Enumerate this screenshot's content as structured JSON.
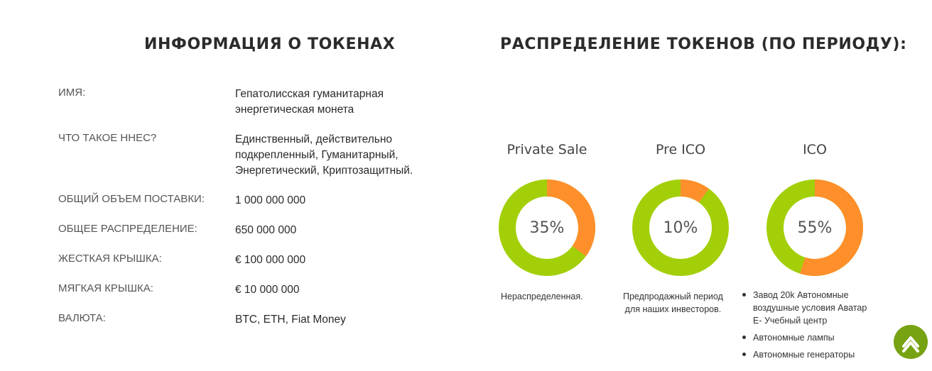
{
  "left": {
    "title": "ИНФОРМАЦИЯ О ТОКЕНАХ",
    "rows": [
      {
        "label": "ИМЯ:",
        "value": "Гепатолисская гуманитарная энергетическая монета"
      },
      {
        "label": "ЧТО ТАКОЕ ННЕС?",
        "value": "Единственный, действительно подкрепленный, Гуманитарный, Энергетический, Криптозащитный."
      },
      {
        "label": "ОБЩИЙ ОБЪЕМ ПОСТАВКИ:",
        "value": "1 000 000 000"
      },
      {
        "label": "ОБЩЕЕ РАСПРЕДЕЛЕНИЕ:",
        "value": "650 000 000"
      },
      {
        "label": "ЖЕСТКАЯ КРЫШКА:",
        "value": "€ 100 000 000"
      },
      {
        "label": "МЯГКАЯ КРЫШКА:",
        "value": "€ 10 000 000"
      },
      {
        "label": "ВАЛЮТА:",
        "value": "BTC, ETH, Fiat Money"
      }
    ]
  },
  "right": {
    "title": "РАСПРЕДЕЛЕНИЕ ТОКЕНОВ (ПО ПЕРИОДУ):",
    "charts": [
      {
        "name": "Private Sale",
        "percent": 35,
        "label": "35%",
        "note_lines": [
          "Нераспределенная."
        ]
      },
      {
        "name": "Pre ICO",
        "percent": 10,
        "label": "10%",
        "note_lines": [
          "Предпродажный период",
          "для наших инвесторов."
        ]
      },
      {
        "name": "ICO",
        "percent": 55,
        "label": "55%",
        "list": [
          "Завод 20k Автономные воздушные условия Аватар E- Учебный центр",
          "Автономные лампы",
          "Автономные генераторы"
        ]
      }
    ]
  },
  "colors": {
    "base": "#a3cf09",
    "accent": "#fe8f2b",
    "scroll_button": "#77a212"
  },
  "icons": {
    "scroll_top": "chevron-up-icon"
  }
}
